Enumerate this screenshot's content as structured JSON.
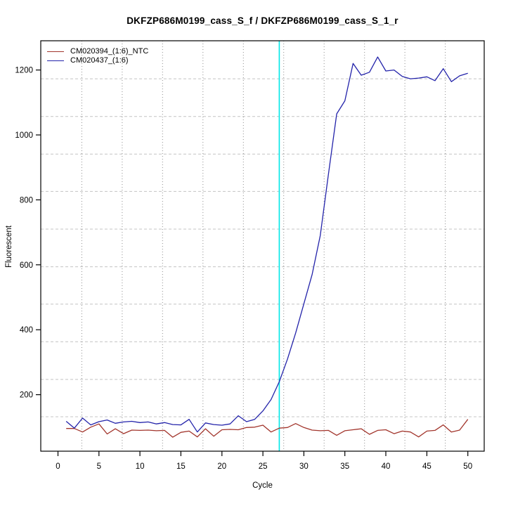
{
  "chart_data": {
    "type": "line",
    "title": "DKFZP686M0199_cass_S_f / DKFZP686M0199_cass_S_1_r",
    "xlabel": "Cycle",
    "ylabel": "Fluorescent",
    "xlim": [
      -2.1,
      52.0
    ],
    "ylim": [
      26,
      1290
    ],
    "x_ticks": [
      0,
      5,
      10,
      15,
      20,
      25,
      30,
      35,
      40,
      45,
      50
    ],
    "y_ticks": [
      200,
      400,
      600,
      800,
      1000,
      1200
    ],
    "grid": {
      "x_positions": [
        2.91,
        7.84,
        12.76,
        17.69,
        22.62,
        27.54,
        32.47,
        37.4,
        42.32,
        47.25
      ],
      "y_positions": [
        1173,
        1057,
        941,
        826,
        710,
        594,
        479,
        363,
        247,
        132
      ],
      "x_style": "dotted-gray",
      "y_style": "dashed-lightgray"
    },
    "threshold_line": {
      "cycle": 27,
      "color": "#00E8E8"
    },
    "legend_position": "top-left",
    "background": "#FFFFFF",
    "frame_color": "#000000",
    "cycles": [
      1,
      2,
      3,
      4,
      5,
      6,
      7,
      8,
      9,
      10,
      11,
      12,
      13,
      14,
      15,
      16,
      17,
      18,
      19,
      20,
      21,
      22,
      23,
      24,
      25,
      26,
      27,
      28,
      29,
      30,
      31,
      32,
      33,
      34,
      35,
      36,
      37,
      38,
      39,
      40,
      41,
      42,
      43,
      44,
      45,
      46,
      47,
      48,
      49,
      50
    ],
    "series": [
      {
        "name": "CM020394_(1:6)_NTC",
        "color": "#A2352C",
        "values": [
          96,
          96,
          85,
          100,
          110,
          79,
          95,
          80,
          91,
          90,
          91,
          89,
          90,
          69,
          84,
          88,
          70,
          95,
          72,
          92,
          93,
          92,
          99,
          100,
          106,
          85,
          97,
          99,
          111,
          99,
          91,
          89,
          90,
          75,
          89,
          92,
          95,
          78,
          90,
          92,
          80,
          88,
          85,
          70,
          88,
          90,
          107,
          85,
          91,
          124
        ]
      },
      {
        "name": "CM020437_(1:6)",
        "color": "#2323AA",
        "values": [
          118,
          97,
          128,
          107,
          117,
          122,
          112,
          116,
          118,
          114,
          116,
          110,
          114,
          108,
          107,
          124,
          85,
          113,
          108,
          106,
          110,
          135,
          117,
          124,
          150,
          185,
          240,
          310,
          390,
          480,
          570,
          690,
          880,
          1065,
          1105,
          1220,
          1184,
          1193,
          1240,
          1197,
          1200,
          1180,
          1173,
          1175,
          1179,
          1167,
          1204,
          1164,
          1182,
          1190
        ]
      }
    ]
  }
}
